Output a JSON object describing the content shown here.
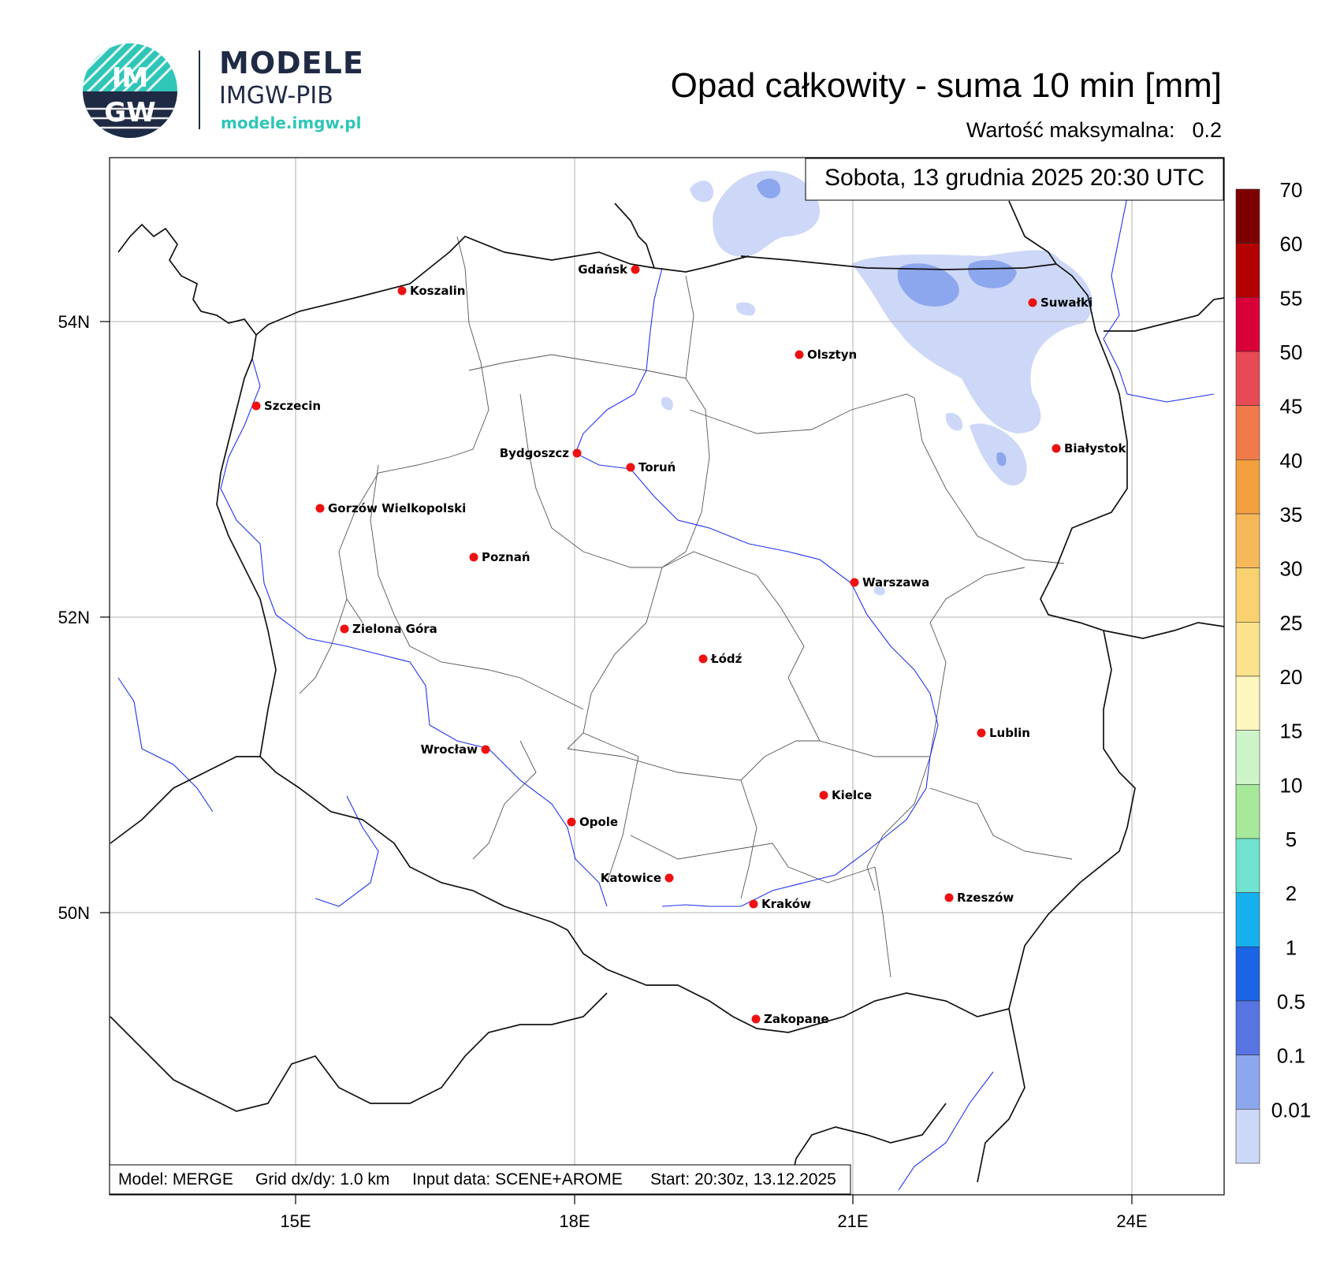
{
  "logo": {
    "line1": "MODELE",
    "line2": "IMGW-PIB",
    "url": "modele.imgw.pl",
    "emblem_top": "IM",
    "emblem_bottom": "GW",
    "accent": "#2fc6b7",
    "dark": "#1f2a44"
  },
  "header": {
    "title": "Opad całkowity - suma 10 min [mm]",
    "max_label": "Wartość maksymalna:",
    "max_value": "0.2"
  },
  "date_label": "Sobota, 13 grudnia 2025 20:30 UTC",
  "footer": {
    "model": "Model: MERGE",
    "grid": "Grid dx/dy: 1.0 km",
    "input": "Input data: SCENE+AROME",
    "start": "Start: 20:30z, 13.12.2025"
  },
  "axes": {
    "lat_ticks": [
      "54N",
      "52N",
      "50N"
    ],
    "lon_ticks": [
      "15E",
      "18E",
      "21E",
      "24E"
    ]
  },
  "colorbar": {
    "labels": [
      "70",
      "60",
      "55",
      "50",
      "45",
      "40",
      "35",
      "30",
      "25",
      "20",
      "15",
      "10",
      "5",
      "2",
      "1",
      "0.5",
      "0.1",
      "0.01"
    ],
    "colors": [
      "#7d0000",
      "#b30000",
      "#d9003a",
      "#e84a55",
      "#f07a4a",
      "#f5a03f",
      "#f7b85a",
      "#f9d170",
      "#fce28a",
      "#fcf7bf",
      "#cdf4c9",
      "#a6e99b",
      "#6fe3cf",
      "#17b0ef",
      "#1a64e6",
      "#5873e2",
      "#8da7ee",
      "#cdd7f7"
    ]
  },
  "cities": [
    {
      "name": "Gdańsk"
    },
    {
      "name": "Koszalin"
    },
    {
      "name": "Suwałki"
    },
    {
      "name": "Olsztyn"
    },
    {
      "name": "Szczecin"
    },
    {
      "name": "Białystok"
    },
    {
      "name": "Bydgoszcz"
    },
    {
      "name": "Toruń"
    },
    {
      "name": "Gorzów Wielkopolski"
    },
    {
      "name": "Poznań"
    },
    {
      "name": "Warszawa"
    },
    {
      "name": "Zielona Góra"
    },
    {
      "name": "Łódź"
    },
    {
      "name": "Lublin"
    },
    {
      "name": "Wrocław"
    },
    {
      "name": "Kielce"
    },
    {
      "name": "Opole"
    },
    {
      "name": "Katowice"
    },
    {
      "name": "Kraków"
    },
    {
      "name": "Rzeszów"
    },
    {
      "name": "Zakopane"
    }
  ]
}
